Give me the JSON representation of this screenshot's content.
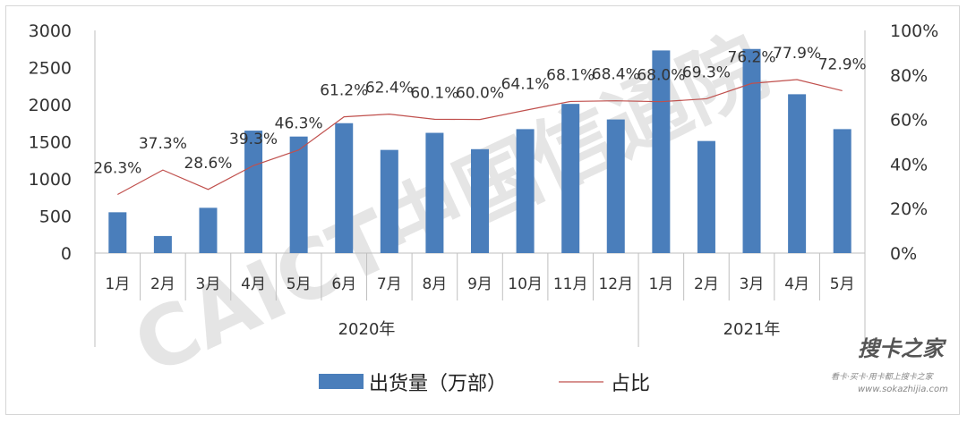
{
  "chart_data": {
    "type": "bar",
    "categories": [
      "1月",
      "2月",
      "3月",
      "4月",
      "5月",
      "6月",
      "7月",
      "8月",
      "9月",
      "10月",
      "11月",
      "12月",
      "1月",
      "2月",
      "3月",
      "4月",
      "5月"
    ],
    "groups": [
      {
        "label": "2020年",
        "count": 12
      },
      {
        "label": "2021年",
        "count": 5
      }
    ],
    "series": [
      {
        "name": "出货量（万部）",
        "type": "bar",
        "axis": "left",
        "color": "#4a7ebb",
        "values": [
          550,
          230,
          610,
          1650,
          1570,
          1750,
          1390,
          1620,
          1400,
          1670,
          2010,
          1800,
          2730,
          1510,
          2750,
          2140,
          1670
        ]
      },
      {
        "name": "占比",
        "type": "line",
        "axis": "right",
        "color": "#c0504d",
        "values": [
          26.3,
          37.3,
          28.6,
          39.3,
          46.3,
          61.2,
          62.4,
          60.1,
          60.0,
          64.1,
          68.1,
          68.4,
          68.0,
          69.3,
          76.2,
          77.9,
          72.9
        ],
        "labels": [
          "26.3%",
          "37.3%",
          "28.6%",
          "39.3%",
          "46.3%",
          "61.2%",
          "62.4%",
          "60.1%",
          "60.0%",
          "64.1%",
          "68.1%",
          "68.4%",
          "68.0%",
          "69.3%",
          "76.2%",
          "77.9%",
          "72.9%"
        ]
      }
    ],
    "y_left": {
      "min": 0,
      "max": 3000,
      "ticks": [
        "0",
        "500",
        "1000",
        "1500",
        "2000",
        "2500",
        "3000"
      ],
      "tick_values": [
        0,
        500,
        1000,
        1500,
        2000,
        2500,
        3000
      ]
    },
    "y_right": {
      "min": 0,
      "max": 100,
      "ticks": [
        "0%",
        "20%",
        "40%",
        "60%",
        "80%",
        "100%"
      ],
      "tick_values": [
        0,
        20,
        40,
        60,
        80,
        100
      ]
    },
    "legend": {
      "position": "bottom"
    },
    "grid": false
  },
  "watermark": {
    "text": "CAICT中国信通院",
    "color": "#d0d0d0"
  },
  "site_logo": {
    "text": "搜卡之家",
    "url_text": "www.sokazhijia.com",
    "tagline": "看卡·买卡·用卡都上搜卡之家"
  }
}
